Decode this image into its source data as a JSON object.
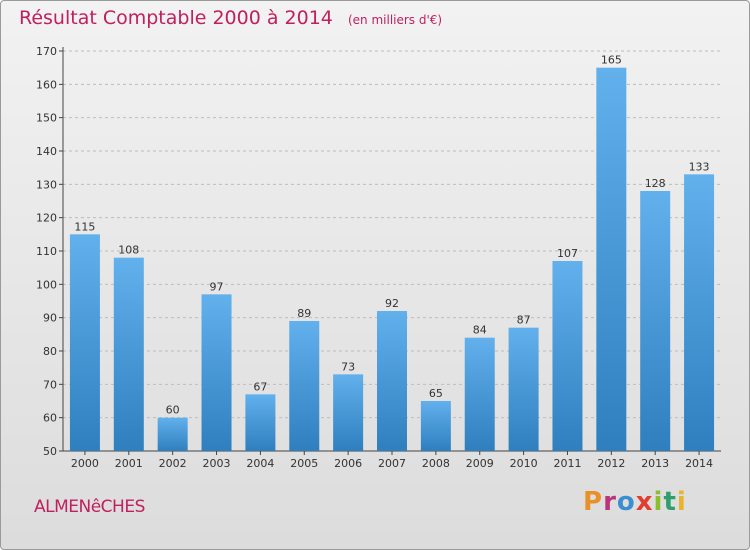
{
  "header": {
    "title": "Résultat Comptable 2000 à 2014",
    "subtitle": "(en milliers d'€)"
  },
  "footer": {
    "location": "ALMENêCHES",
    "brand": "Proxiti",
    "brand_colors": [
      "#e8912b",
      "#b8357a",
      "#3b8ed0",
      "#e23d2e",
      "#8bbd2f",
      "#2f9e6e",
      "#e8b42b"
    ]
  },
  "colors": {
    "bar_light": "#62b0ec",
    "bar_dark": "#2f7fbf",
    "title": "#c0205e",
    "grid": "#bdbdbd"
  },
  "chart_data": {
    "type": "bar",
    "title": "Résultat Comptable 2000 à 2014",
    "subtitle": "(en milliers d'€)",
    "xlabel": "",
    "ylabel": "",
    "categories": [
      "2000",
      "2001",
      "2002",
      "2003",
      "2004",
      "2005",
      "2006",
      "2007",
      "2008",
      "2009",
      "2010",
      "2011",
      "2012",
      "2013",
      "2014"
    ],
    "values": [
      115,
      108,
      60,
      97,
      67,
      89,
      73,
      92,
      65,
      84,
      87,
      107,
      165,
      128,
      133
    ],
    "ylim": [
      50,
      170
    ],
    "yticks": [
      50,
      60,
      70,
      80,
      90,
      100,
      110,
      120,
      130,
      140,
      150,
      160,
      170
    ],
    "grid": true,
    "data_labels": true
  }
}
